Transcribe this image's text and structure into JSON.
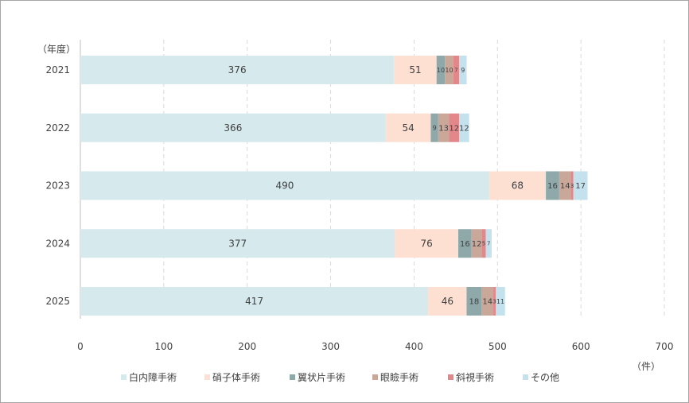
{
  "chart_data": {
    "type": "bar",
    "orientation": "horizontal",
    "stacked": true,
    "categories": [
      "2021",
      "2022",
      "2023",
      "2024",
      "2025"
    ],
    "series": [
      {
        "name": "白内障手術",
        "values": [
          376,
          366,
          490,
          377,
          417
        ],
        "color": "#d6e9ec"
      },
      {
        "name": "硝子体手術",
        "values": [
          51,
          54,
          68,
          76,
          46
        ],
        "color": "#fde0d2"
      },
      {
        "name": "翼状片手術",
        "values": [
          10,
          9,
          16,
          16,
          18
        ],
        "color": "#8fa9ab"
      },
      {
        "name": "眼瞼手術",
        "values": [
          10,
          13,
          14,
          12,
          14
        ],
        "color": "#c9a89a"
      },
      {
        "name": "斜視手術",
        "values": [
          7,
          12,
          3,
          5,
          3
        ],
        "color": "#e3888a"
      },
      {
        "name": "その他",
        "values": [
          9,
          12,
          17,
          7,
          11
        ],
        "color": "#c4e2ee"
      }
    ],
    "xlim": [
      0,
      700
    ],
    "xticks": [
      0,
      100,
      200,
      300,
      400,
      500,
      600,
      700
    ],
    "ylabel": "（年度）",
    "xunit": "（件）",
    "grid": "vertical dashed",
    "legend_position": "bottom"
  }
}
